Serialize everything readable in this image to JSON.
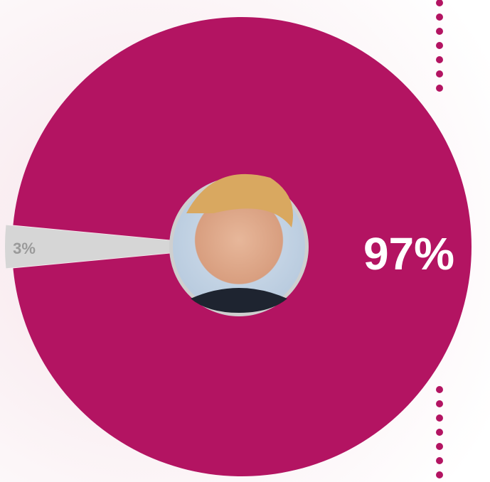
{
  "chart_data": {
    "type": "pie",
    "values": [
      97,
      3
    ],
    "value_labels": [
      "97%",
      "3%"
    ],
    "colors": [
      "#b31462",
      "#d6d6d6"
    ],
    "label_colors": [
      "#ffffff",
      "#9a9a9a"
    ]
  }
}
